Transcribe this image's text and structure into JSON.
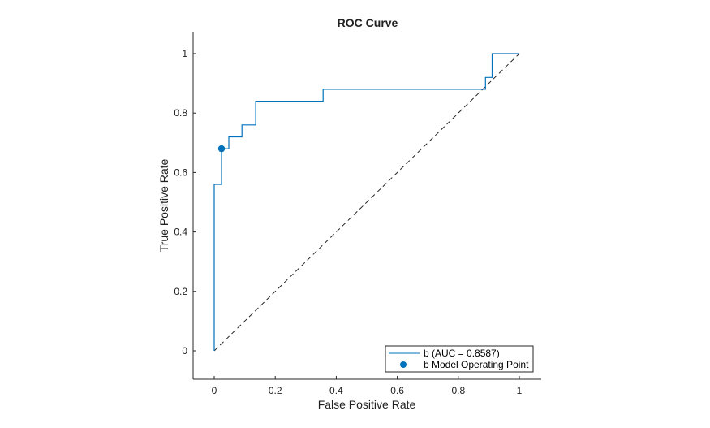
{
  "chart_data": {
    "type": "line",
    "title": "ROC Curve",
    "xlabel": "False Positive Rate",
    "ylabel": "True Positive Rate",
    "xlim": [
      -0.07,
      1.07
    ],
    "ylim": [
      -0.1,
      1.07
    ],
    "xticks": [
      0,
      0.2,
      0.4,
      0.6,
      0.8,
      1
    ],
    "xtick_labels": [
      "0",
      "0.2",
      "0.4",
      "0.6",
      "0.8",
      "1"
    ],
    "yticks": [
      0,
      0.2,
      0.4,
      0.6,
      0.8,
      1
    ],
    "ytick_labels": [
      "0",
      "0.2",
      "0.4",
      "0.6",
      "0.8",
      "1"
    ],
    "grid": false,
    "legend_position": "bottom-right",
    "series": [
      {
        "name": "b (AUC = 0.8587)",
        "kind": "step-line",
        "color": "#0072BD",
        "x": [
          0,
          0,
          0.024,
          0.024,
          0.048,
          0.048,
          0.091,
          0.091,
          0.136,
          0.136,
          0.357,
          0.357,
          0.889,
          0.889,
          0.911,
          0.911,
          1
        ],
        "y": [
          0,
          0.56,
          0.56,
          0.68,
          0.68,
          0.72,
          0.72,
          0.76,
          0.76,
          0.84,
          0.84,
          0.88,
          0.88,
          0.92,
          0.92,
          1,
          1
        ]
      },
      {
        "name": "b Model Operating Point",
        "kind": "marker",
        "color": "#0072BD",
        "x": [
          0.024
        ],
        "y": [
          0.68
        ]
      },
      {
        "name": "chance-line",
        "kind": "dashed-line",
        "color": "#262626",
        "x": [
          0,
          1
        ],
        "y": [
          0,
          1
        ]
      }
    ],
    "legend": [
      {
        "label": "b (AUC = 0.8587)",
        "symbol": "line",
        "color": "#0072BD"
      },
      {
        "label": "b Model Operating Point",
        "symbol": "dot",
        "color": "#0072BD"
      }
    ]
  }
}
